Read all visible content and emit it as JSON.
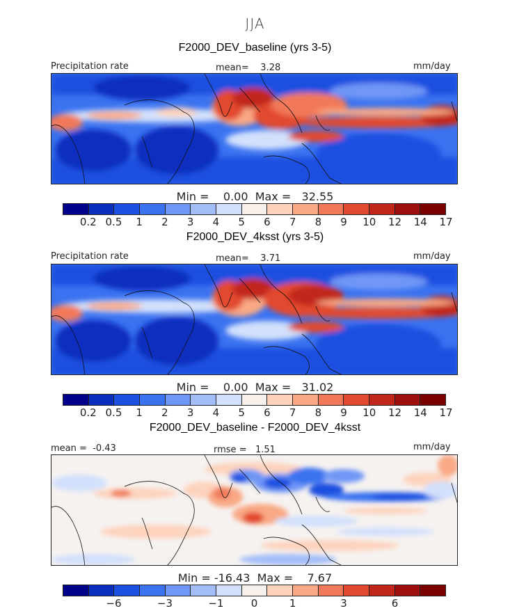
{
  "season": "JJA",
  "panels": [
    {
      "title": "F2000_DEV_baseline (yrs 3-5)",
      "left_label": "Precipitation rate",
      "mid_label": "mean=    3.28",
      "right_label": "mm/day",
      "minmax": "Min =    0.00  Max =   32.55",
      "ticks": [
        "0.2",
        "0.5",
        "1",
        "2",
        "3",
        "4",
        "5",
        "6",
        "7",
        "8",
        "9",
        "10",
        "12",
        "14",
        "17"
      ]
    },
    {
      "title": "F2000_DEV_4ksst (yrs 3-5)",
      "left_label": "Precipitation rate",
      "mid_label": "mean=    3.71",
      "right_label": "mm/day",
      "minmax": "Min =    0.00  Max =   31.02",
      "ticks": [
        "0.2",
        "0.5",
        "1",
        "2",
        "3",
        "4",
        "5",
        "6",
        "7",
        "8",
        "9",
        "10",
        "12",
        "14",
        "17"
      ]
    },
    {
      "title": "F2000_DEV_baseline - F2000_DEV_4ksst",
      "left_label": "mean =  -0.43",
      "mid_label": "rmse =   1.51",
      "right_label": "mm/day",
      "minmax": "Min = -16.43  Max =    7.67",
      "ticks": [
        "-6",
        "-3",
        "-1",
        "0",
        "1",
        "3",
        "6"
      ]
    }
  ],
  "colors": {
    "precip_scale": [
      "#00008b",
      "#0a2fbf",
      "#1d50e0",
      "#3a72f0",
      "#6f97f6",
      "#a3bdf9",
      "#d2e0fc",
      "#f8f0ea",
      "#fdd3bd",
      "#f9a985",
      "#f1795a",
      "#e24a2f",
      "#c2251a",
      "#a00f0f",
      "#7a0000"
    ],
    "diff_scale": [
      "#00008b",
      "#0a2fbf",
      "#1d50e0",
      "#3a72f0",
      "#6f97f6",
      "#a3bdf9",
      "#d2e0fc",
      "#f8f0ea",
      "#fdd3bd",
      "#f9a985",
      "#f1795a",
      "#e24a2f",
      "#c2251a",
      "#a00f0f",
      "#7a0000"
    ]
  }
}
